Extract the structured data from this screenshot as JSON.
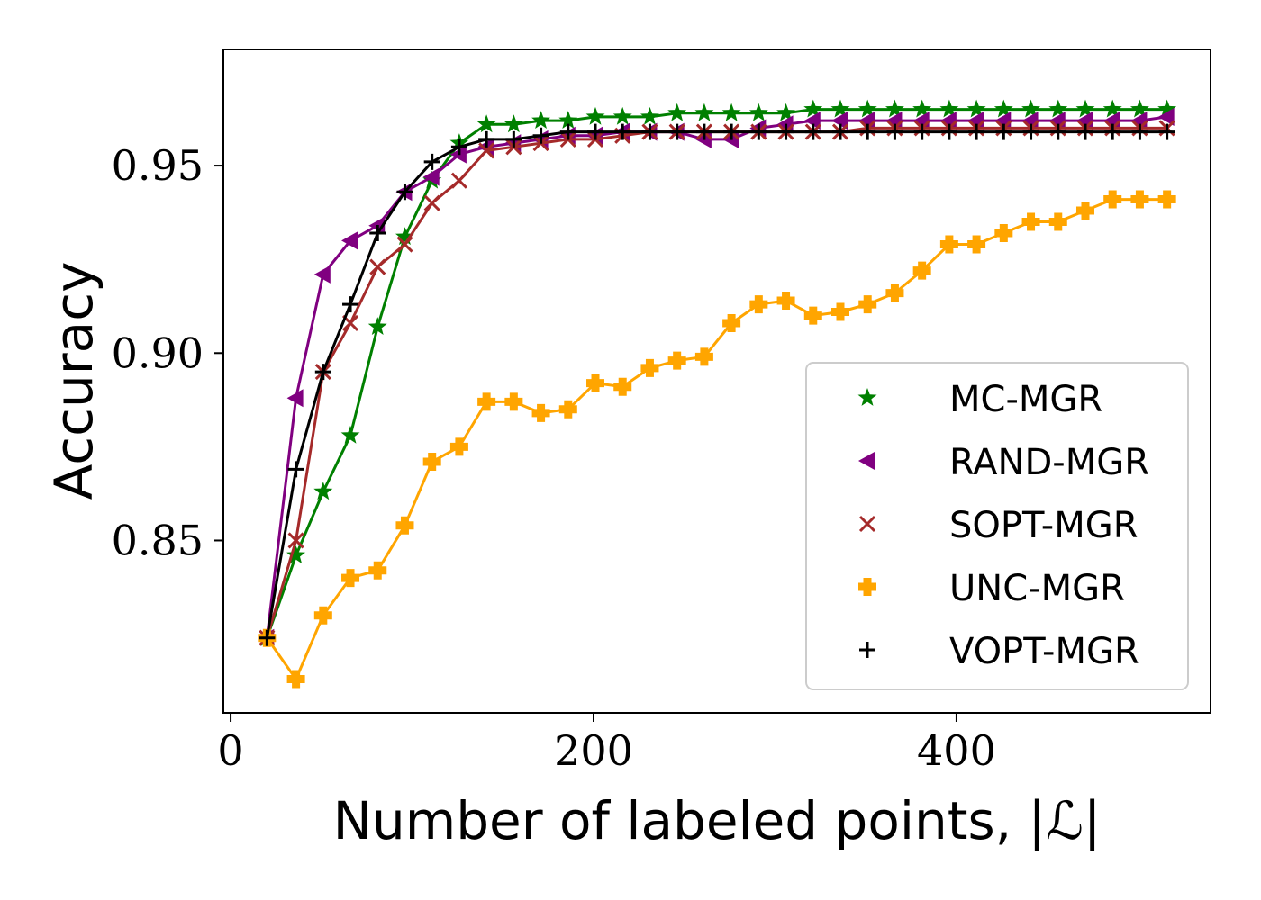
{
  "chart_data": {
    "type": "line",
    "title": "",
    "xlabel": "Number of labeled points, |ℒ|",
    "ylabel": "Accuracy",
    "xlim": [
      -4,
      540
    ],
    "ylim": [
      0.804,
      0.981
    ],
    "xticks": [
      0,
      200,
      400
    ],
    "xtick_labels": [
      "0",
      "200",
      "400"
    ],
    "yticks": [
      0.85,
      0.9,
      0.95
    ],
    "ytick_labels": [
      "0.85",
      "0.90",
      "0.95"
    ],
    "grid": false,
    "legend_position": "lower-right",
    "x": [
      20,
      36,
      51,
      66,
      81,
      96,
      111,
      126,
      141,
      156,
      171,
      186,
      201,
      216,
      231,
      246,
      261,
      276,
      291,
      306,
      321,
      336,
      351,
      366,
      381,
      396,
      411,
      426,
      441,
      456,
      471,
      486,
      501,
      516
    ],
    "series": [
      {
        "name": "MC-MGR",
        "color": "#008000",
        "marker": "star",
        "values": [
          0.824,
          0.846,
          0.863,
          0.878,
          0.907,
          0.931,
          0.946,
          0.956,
          0.961,
          0.961,
          0.962,
          0.962,
          0.963,
          0.963,
          0.963,
          0.964,
          0.964,
          0.964,
          0.964,
          0.964,
          0.965,
          0.965,
          0.965,
          0.965,
          0.965,
          0.965,
          0.965,
          0.965,
          0.965,
          0.965,
          0.965,
          0.965,
          0.965,
          0.965
        ]
      },
      {
        "name": "RAND-MGR",
        "color": "#800080",
        "marker": "triangle-left",
        "values": [
          0.824,
          0.888,
          0.921,
          0.93,
          0.934,
          0.943,
          0.947,
          0.953,
          0.955,
          0.956,
          0.957,
          0.958,
          0.958,
          0.959,
          0.959,
          0.959,
          0.957,
          0.957,
          0.96,
          0.961,
          0.962,
          0.962,
          0.962,
          0.962,
          0.962,
          0.962,
          0.962,
          0.962,
          0.962,
          0.962,
          0.962,
          0.962,
          0.962,
          0.963
        ]
      },
      {
        "name": "SOPT-MGR",
        "color": "#a52a2a",
        "marker": "x",
        "values": [
          0.824,
          0.85,
          0.895,
          0.908,
          0.923,
          0.929,
          0.94,
          0.946,
          0.954,
          0.955,
          0.956,
          0.957,
          0.957,
          0.958,
          0.959,
          0.959,
          0.959,
          0.959,
          0.959,
          0.959,
          0.959,
          0.959,
          0.96,
          0.96,
          0.96,
          0.96,
          0.96,
          0.96,
          0.96,
          0.96,
          0.96,
          0.96,
          0.96,
          0.96
        ]
      },
      {
        "name": "UNC-MGR",
        "color": "#ffa500",
        "marker": "plus-filled",
        "values": [
          0.824,
          0.813,
          0.83,
          0.84,
          0.842,
          0.854,
          0.871,
          0.875,
          0.887,
          0.887,
          0.884,
          0.885,
          0.892,
          0.891,
          0.896,
          0.898,
          0.899,
          0.908,
          0.913,
          0.914,
          0.91,
          0.911,
          0.913,
          0.916,
          0.922,
          0.929,
          0.929,
          0.932,
          0.935,
          0.935,
          0.938,
          0.941,
          0.941,
          0.941
        ]
      },
      {
        "name": "VOPT-MGR",
        "color": "#000000",
        "marker": "plus",
        "values": [
          0.824,
          0.869,
          0.895,
          0.913,
          0.932,
          0.943,
          0.951,
          0.955,
          0.957,
          0.957,
          0.958,
          0.959,
          0.959,
          0.959,
          0.959,
          0.959,
          0.959,
          0.959,
          0.959,
          0.959,
          0.959,
          0.959,
          0.959,
          0.959,
          0.959,
          0.959,
          0.959,
          0.959,
          0.959,
          0.959,
          0.959,
          0.959,
          0.959,
          0.959
        ]
      }
    ]
  }
}
